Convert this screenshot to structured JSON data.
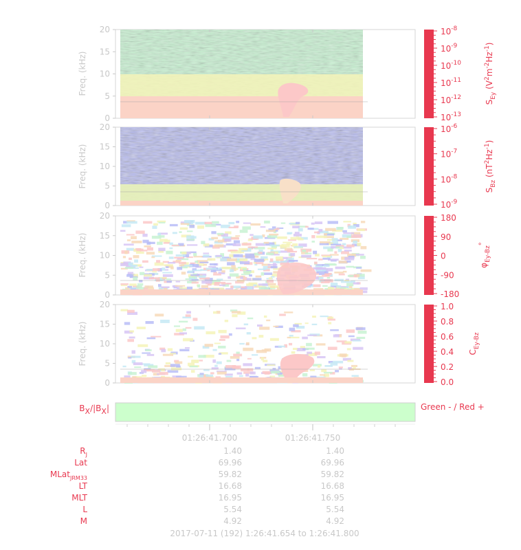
{
  "panels": [
    {
      "ylabel": "Freq. (kHz)",
      "yticks": [
        "0",
        "5",
        "10",
        "15",
        "20"
      ],
      "cbar_label": "S_Ey (V²m⁻²Hz⁻¹)",
      "cbar_label_main": "S",
      "cbar_label_sub": "Ey",
      "cbar_label_unit": "(V",
      "cbar_label_rest": "m",
      "cbar_label_rest2": "Hz",
      "cbar_label_end": ")",
      "cbar_ticks": [
        {
          "base": "10",
          "exp": "-8"
        },
        {
          "base": "10",
          "exp": "-9"
        },
        {
          "base": "10",
          "exp": "-10"
        },
        {
          "base": "10",
          "exp": "-11"
        },
        {
          "base": "10",
          "exp": "-12"
        },
        {
          "base": "10",
          "exp": "-13"
        }
      ]
    },
    {
      "ylabel": "Freq. (kHz)",
      "yticks": [
        "0",
        "5",
        "10",
        "15",
        "20"
      ],
      "cbar_label_main": "S",
      "cbar_label_sub": "Bz",
      "cbar_label_unit": "(nT",
      "cbar_label_rest": "Hz",
      "cbar_label_end": ")",
      "cbar_ticks": [
        {
          "base": "10",
          "exp": "-6"
        },
        {
          "base": "10",
          "exp": "-7"
        },
        {
          "base": "10",
          "exp": "-8"
        },
        {
          "base": "10",
          "exp": "-9"
        }
      ]
    },
    {
      "ylabel": "Freq. (kHz)",
      "yticks": [
        "0",
        "5",
        "10",
        "15",
        "20"
      ],
      "cbar_label_main": "φ",
      "cbar_label_sub": "Ey-Bz",
      "cbar_label_end": "°",
      "cbar_ticks": [
        "180",
        "90",
        "0",
        "-90",
        "-180"
      ]
    },
    {
      "ylabel": "Freq. (kHz)",
      "yticks": [
        "0",
        "5",
        "10",
        "15",
        "20"
      ],
      "cbar_label_main": "C",
      "cbar_label_sub": "Ey-Bz",
      "cbar_ticks": [
        "1.0",
        "0.8",
        "0.6",
        "0.4",
        "0.2",
        "0.0"
      ]
    }
  ],
  "bx_panel": {
    "label_main": "B",
    "label_sub": "X",
    "label_mid": "/|B",
    "label_sub2": "X",
    "label_end": "|",
    "legend": "Green - / Red +",
    "color": "#ccffcc"
  },
  "time_ticks": [
    "01:26:41.700",
    "01:26:41.750"
  ],
  "ephemeris": {
    "rows": [
      {
        "label": "R",
        "sub": "J",
        "values": [
          "1.40",
          "1.40"
        ]
      },
      {
        "label": "Lat",
        "sub": "",
        "values": [
          "69.96",
          "69.96"
        ]
      },
      {
        "label": "MLat",
        "sub": "JRM33",
        "values": [
          "59.82",
          "59.82"
        ]
      },
      {
        "label": "LT",
        "sub": "",
        "values": [
          "16.68",
          "16.68"
        ]
      },
      {
        "label": "MLT",
        "sub": "",
        "values": [
          "16.95",
          "16.95"
        ]
      },
      {
        "label": "L",
        "sub": "",
        "values": [
          "5.54",
          "5.54"
        ]
      },
      {
        "label": "M",
        "sub": "",
        "values": [
          "4.92",
          "4.92"
        ]
      }
    ]
  },
  "footer": "2017-07-11 (192) 1:26:41.654 to 1:26:41.800",
  "colors": {
    "axis_text": "#c8c8c8",
    "accent_red": "#e8384f",
    "bx_fill": "#ccffcc"
  }
}
